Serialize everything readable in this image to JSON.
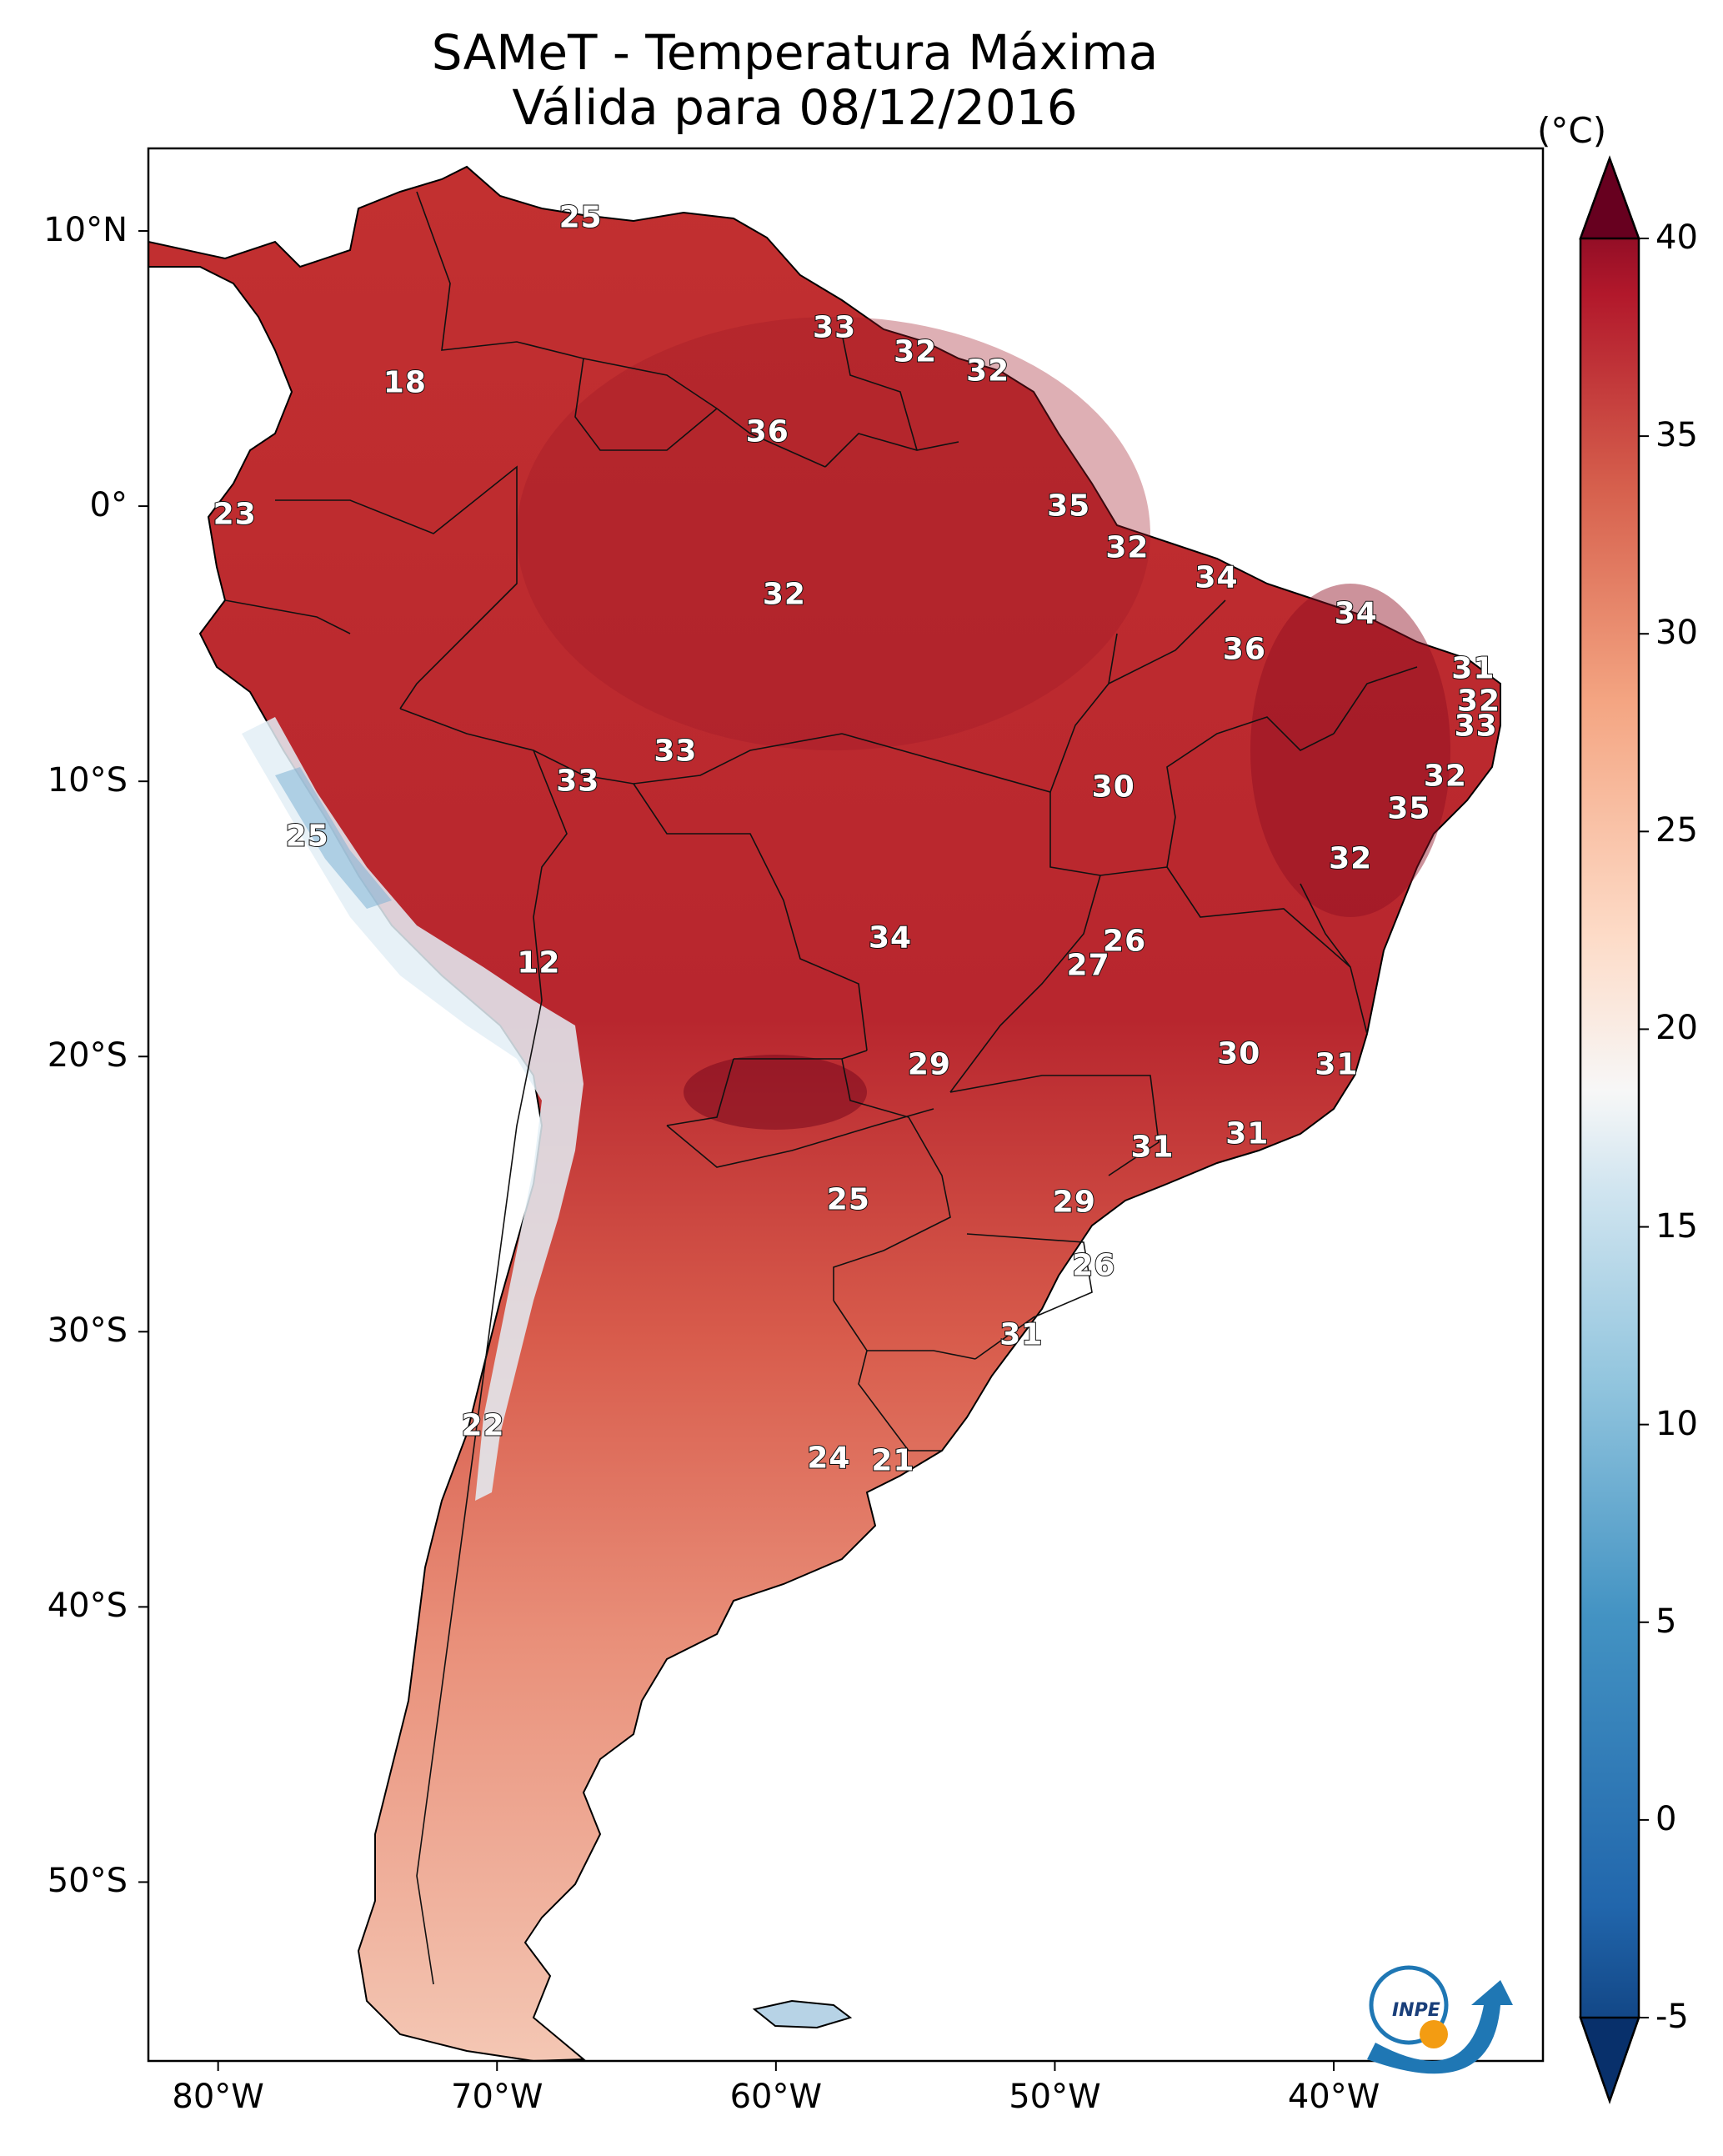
{
  "title": {
    "line1": "SAMeT - Temperatura Máxima",
    "line2": "Válida para 08/12/2016"
  },
  "axes": {
    "lat_labels": [
      "10°N",
      "0°",
      "10°S",
      "20°S",
      "30°S",
      "40°S",
      "50°S"
    ],
    "lon_labels": [
      "80°W",
      "70°W",
      "60°W",
      "50°W",
      "40°W"
    ]
  },
  "colorbar": {
    "unit": "(°C)",
    "ticks": [
      "40",
      "35",
      "30",
      "25",
      "20",
      "15",
      "10",
      "5",
      "0",
      "-5"
    ],
    "min": -7,
    "max": 40,
    "colors": [
      "#08306b",
      "#2166ac",
      "#4393c3",
      "#92c5de",
      "#d1e5f0",
      "#f7f7f7",
      "#fddbc7",
      "#f4a582",
      "#d6604d",
      "#b2182b",
      "#67001f"
    ]
  },
  "map_values": [
    {
      "value": "25",
      "lon": -67,
      "lat": 10.5
    },
    {
      "value": "33",
      "lon": -57.9,
      "lat": 6.5
    },
    {
      "value": "32",
      "lon": -55,
      "lat": 5.6
    },
    {
      "value": "32",
      "lon": -52.4,
      "lat": 4.9
    },
    {
      "value": "18",
      "lon": -73.3,
      "lat": 4.5
    },
    {
      "value": "36",
      "lon": -60.3,
      "lat": 2.7
    },
    {
      "value": "35",
      "lon": -49.5,
      "lat": 0
    },
    {
      "value": "23",
      "lon": -79.4,
      "lat": -0.3
    },
    {
      "value": "32",
      "lon": -47.4,
      "lat": -1.5
    },
    {
      "value": "34",
      "lon": -44.2,
      "lat": -2.6
    },
    {
      "value": "32",
      "lon": -59.7,
      "lat": -3.2
    },
    {
      "value": "34",
      "lon": -39.2,
      "lat": -3.9
    },
    {
      "value": "36",
      "lon": -43.2,
      "lat": -5.2
    },
    {
      "value": "31",
      "lon": -35,
      "lat": -5.9
    },
    {
      "value": "32",
      "lon": -34.8,
      "lat": -7.1
    },
    {
      "value": "33",
      "lon": -34.9,
      "lat": -8
    },
    {
      "value": "33",
      "lon": -63.6,
      "lat": -8.9
    },
    {
      "value": "32",
      "lon": -36,
      "lat": -9.8
    },
    {
      "value": "33",
      "lon": -67.1,
      "lat": -10
    },
    {
      "value": "30",
      "lon": -47.9,
      "lat": -10.2
    },
    {
      "value": "35",
      "lon": -37.3,
      "lat": -11
    },
    {
      "value": "25",
      "lon": -76.8,
      "lat": -12
    },
    {
      "value": "32",
      "lon": -39.4,
      "lat": -12.8
    },
    {
      "value": "34",
      "lon": -55.9,
      "lat": -15.7
    },
    {
      "value": "26",
      "lon": -47.5,
      "lat": -15.8
    },
    {
      "value": "12",
      "lon": -68.5,
      "lat": -16.6
    },
    {
      "value": "27",
      "lon": -48.8,
      "lat": -16.7
    },
    {
      "value": "30",
      "lon": -43.4,
      "lat": -19.9
    },
    {
      "value": "29",
      "lon": -54.5,
      "lat": -20.3
    },
    {
      "value": "31",
      "lon": -39.9,
      "lat": -20.3
    },
    {
      "value": "31",
      "lon": -43.1,
      "lat": -22.8
    },
    {
      "value": "31",
      "lon": -46.5,
      "lat": -23.3
    },
    {
      "value": "25",
      "lon": -57.4,
      "lat": -25.2
    },
    {
      "value": "29",
      "lon": -49.3,
      "lat": -25.3
    },
    {
      "value": "26",
      "lon": -48.6,
      "lat": -27.6
    },
    {
      "value": "31",
      "lon": -51.2,
      "lat": -30.1
    },
    {
      "value": "22",
      "lon": -70.5,
      "lat": -33.4
    },
    {
      "value": "24",
      "lon": -58.1,
      "lat": -34.6
    },
    {
      "value": "21",
      "lon": -55.8,
      "lat": -34.7
    }
  ],
  "logo": {
    "text": "INPE"
  }
}
